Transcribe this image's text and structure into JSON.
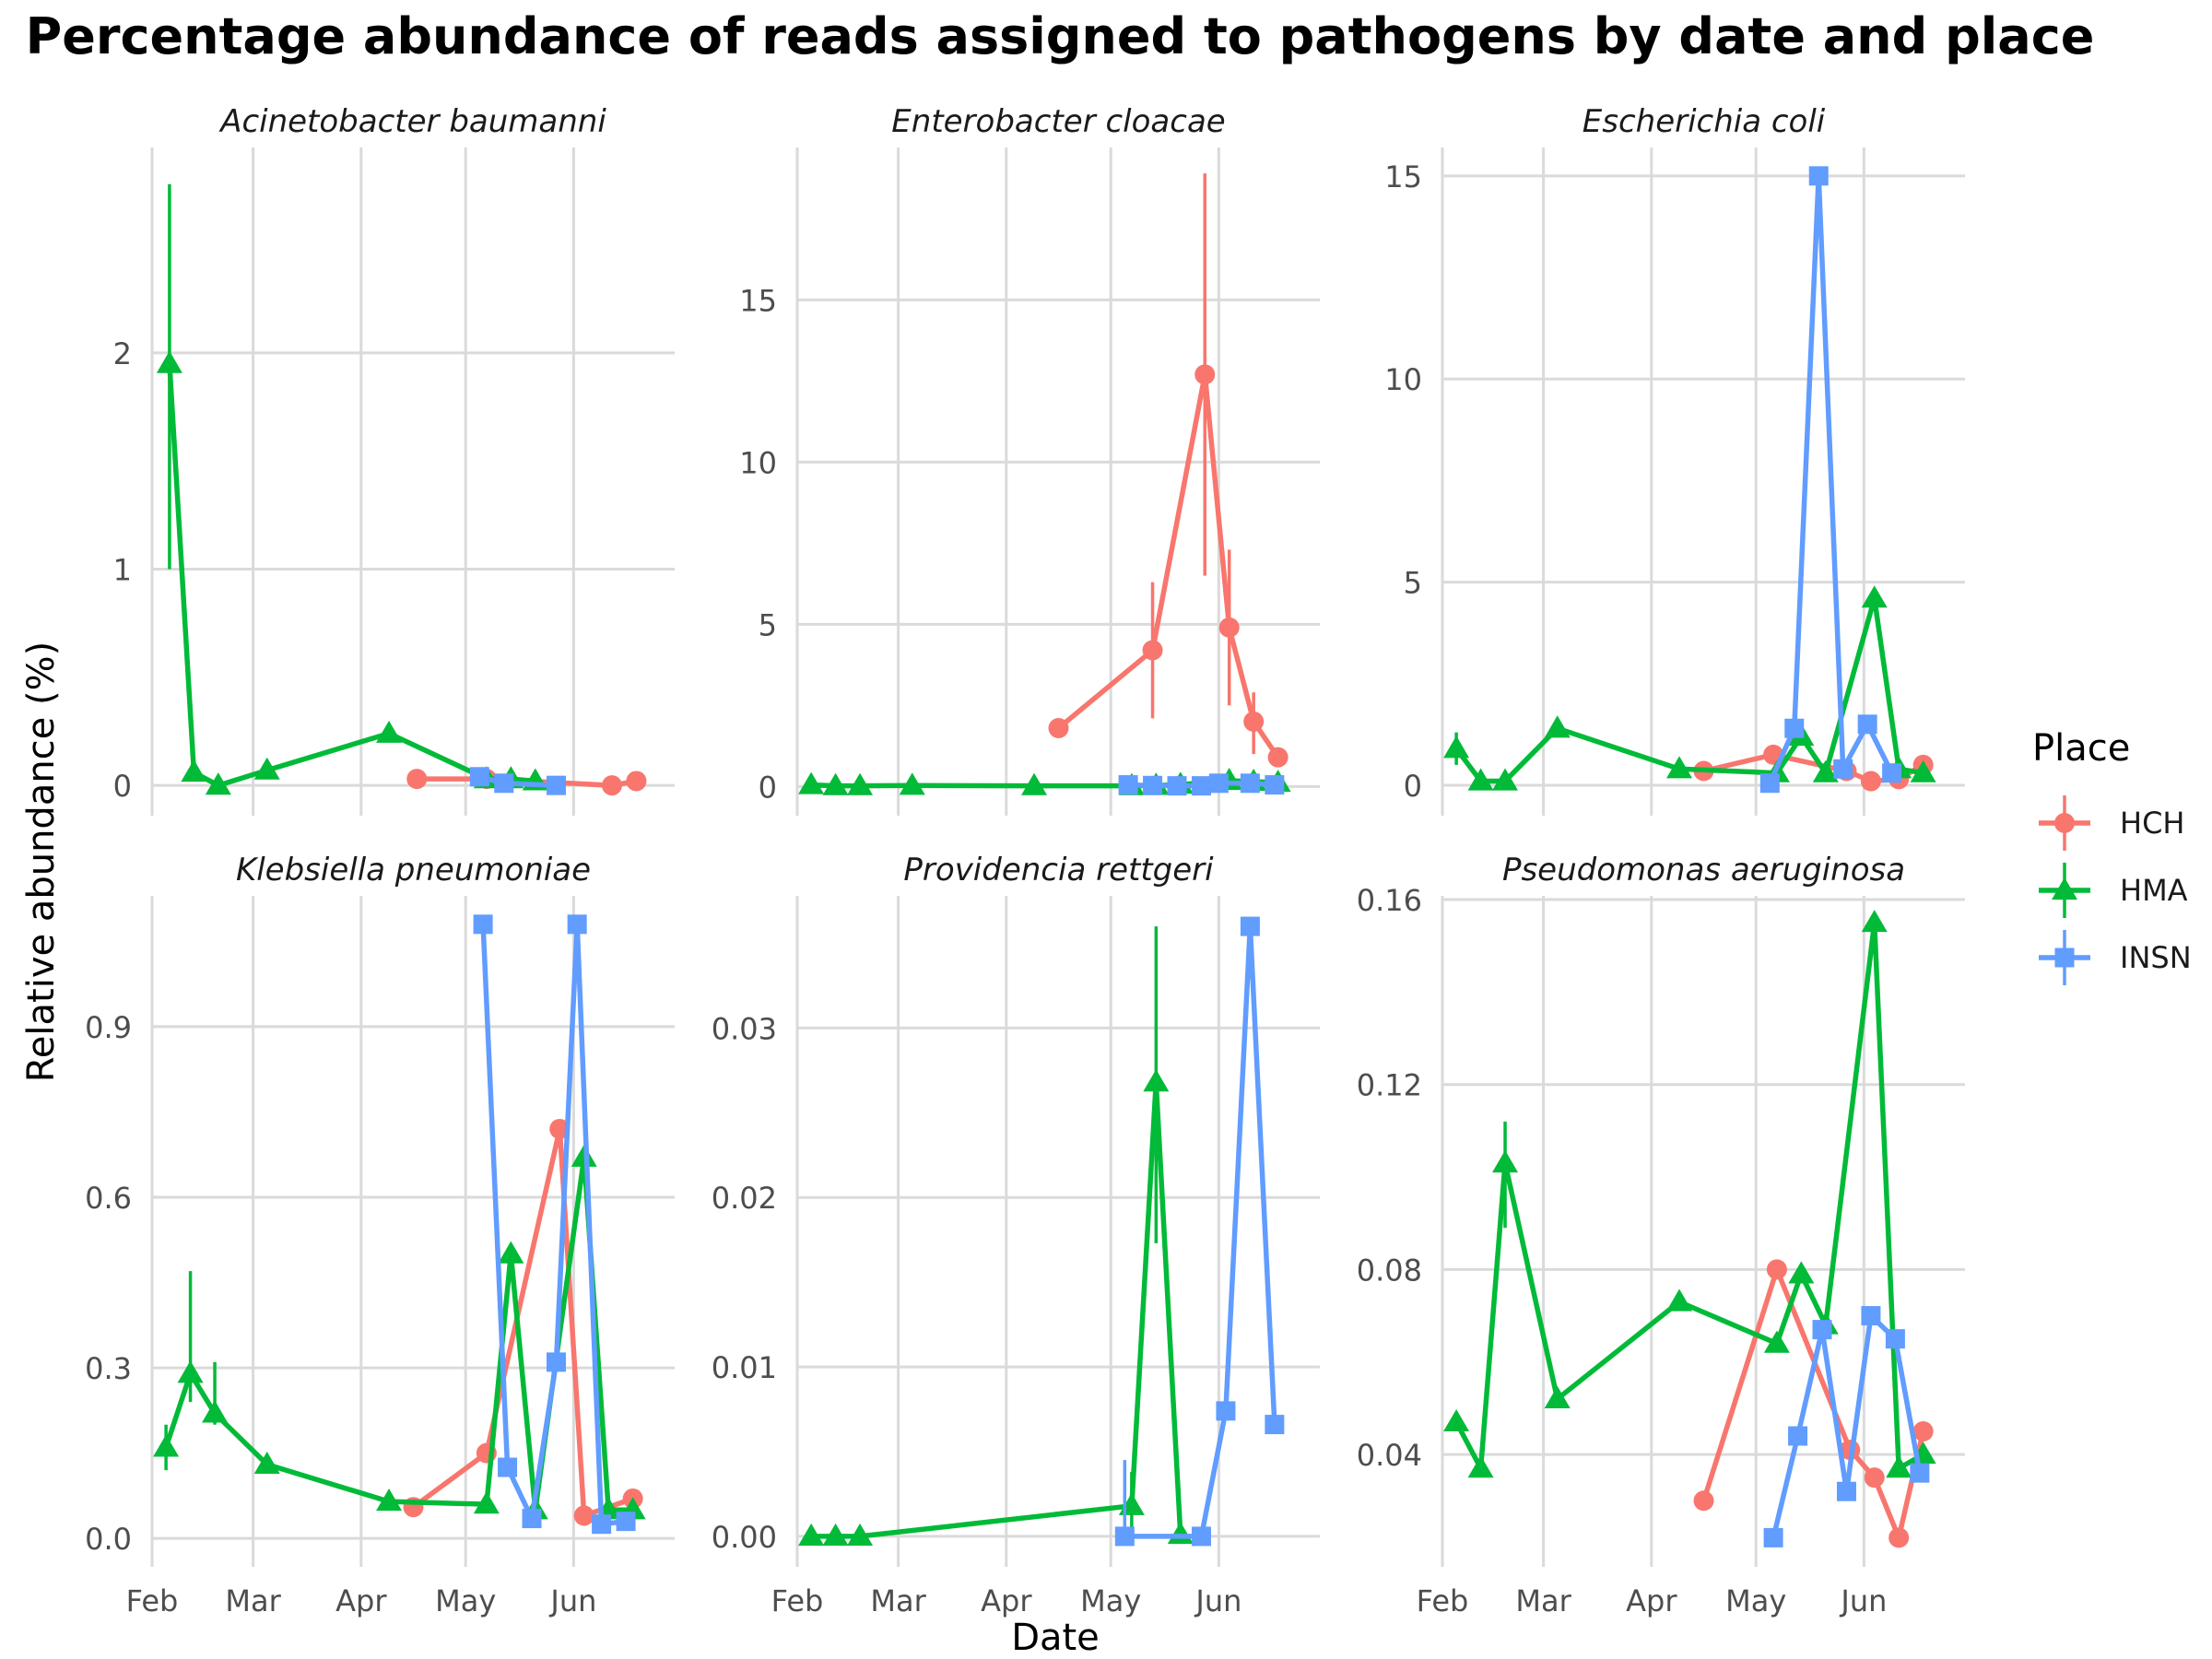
{
  "figure": {
    "title": "Percentage abundance of reads assigned to pathogens by date and place",
    "xlabel": "Date",
    "ylabel": "Relative abundance (%)",
    "legend": {
      "title": "Place",
      "position": "right",
      "entries": [
        {
          "name": "HCH",
          "color": "#F8766D",
          "shape": "circle"
        },
        {
          "name": "HMA",
          "color": "#00BA38",
          "shape": "triangle"
        },
        {
          "name": "INSN",
          "color": "#619CFF",
          "shape": "square"
        }
      ]
    },
    "colors": {
      "HCH": "#F8766D",
      "HMA": "#00BA38",
      "INSN": "#619CFF",
      "grid": "#dadada",
      "text": "#4d4d4d"
    }
  },
  "chart_data": [
    {
      "type": "line",
      "title": "Acinetobacter baumanni",
      "xlim": [
        "2024-02-01",
        "2024-06-30"
      ],
      "x_ticks": [
        {
          "date": "2024-02-01",
          "label": "Feb"
        },
        {
          "date": "2024-03-01",
          "label": "Mar"
        },
        {
          "date": "2024-04-01",
          "label": "Apr"
        },
        {
          "date": "2024-05-01",
          "label": "May"
        },
        {
          "date": "2024-06-01",
          "label": "Jun"
        }
      ],
      "ylim": [
        -0.14,
        2.95
      ],
      "y_ticks": [
        {
          "value": 0,
          "label": "0"
        },
        {
          "value": 1,
          "label": "1"
        },
        {
          "value": 2,
          "label": "2"
        }
      ],
      "grid": true,
      "series": [
        {
          "name": "HCH",
          "points": [
            {
              "x": "2024-04-17",
              "y": 0.03
            },
            {
              "x": "2024-05-07",
              "y": 0.03
            },
            {
              "x": "2024-06-12",
              "y": 0.0
            },
            {
              "x": "2024-06-19",
              "y": 0.02
            }
          ]
        },
        {
          "name": "HMA",
          "points": [
            {
              "x": "2024-02-06",
              "y": 1.95,
              "ymin": 1.0,
              "ymax": 2.78
            },
            {
              "x": "2024-02-13",
              "y": 0.06
            },
            {
              "x": "2024-02-20",
              "y": 0.0
            },
            {
              "x": "2024-03-05",
              "y": 0.07
            },
            {
              "x": "2024-04-09",
              "y": 0.24
            },
            {
              "x": "2024-05-07",
              "y": 0.03
            },
            {
              "x": "2024-05-14",
              "y": 0.03
            },
            {
              "x": "2024-05-21",
              "y": 0.02
            }
          ]
        },
        {
          "name": "INSN",
          "points": [
            {
              "x": "2024-05-05",
              "y": 0.04
            },
            {
              "x": "2024-05-12",
              "y": 0.01
            },
            {
              "x": "2024-05-27",
              "y": 0.0
            }
          ]
        }
      ]
    },
    {
      "type": "line",
      "title": "Enterobacter cloacae",
      "xlim": [
        "2024-02-01",
        "2024-06-30"
      ],
      "x_ticks": [
        {
          "date": "2024-02-01",
          "label": "Feb"
        },
        {
          "date": "2024-03-01",
          "label": "Mar"
        },
        {
          "date": "2024-04-01",
          "label": "Apr"
        },
        {
          "date": "2024-05-01",
          "label": "May"
        },
        {
          "date": "2024-06-01",
          "label": "Jun"
        }
      ],
      "ylim": [
        -0.9,
        19.7
      ],
      "y_ticks": [
        {
          "value": 0,
          "label": "0"
        },
        {
          "value": 5,
          "label": "5"
        },
        {
          "value": 10,
          "label": "10"
        },
        {
          "value": 15,
          "label": "15"
        }
      ],
      "grid": true,
      "series": [
        {
          "name": "HCH",
          "points": [
            {
              "x": "2024-04-16",
              "y": 1.8
            },
            {
              "x": "2024-05-13",
              "y": 4.2,
              "ymin": 2.1,
              "ymax": 6.3
            },
            {
              "x": "2024-05-28",
              "y": 12.7,
              "ymin": 6.5,
              "ymax": 18.9
            },
            {
              "x": "2024-06-04",
              "y": 4.9,
              "ymin": 2.5,
              "ymax": 7.3
            },
            {
              "x": "2024-06-11",
              "y": 2.0,
              "ymin": 1.0,
              "ymax": 2.9
            },
            {
              "x": "2024-06-18",
              "y": 0.9
            }
          ]
        },
        {
          "name": "HMA",
          "points": [
            {
              "x": "2024-02-05",
              "y": 0.05
            },
            {
              "x": "2024-02-12",
              "y": 0.02
            },
            {
              "x": "2024-02-19",
              "y": 0.02
            },
            {
              "x": "2024-03-05",
              "y": 0.03
            },
            {
              "x": "2024-04-09",
              "y": 0.02
            },
            {
              "x": "2024-05-07",
              "y": 0.02
            },
            {
              "x": "2024-05-14",
              "y": 0.03
            },
            {
              "x": "2024-05-21",
              "y": 0.06
            },
            {
              "x": "2024-06-04",
              "y": 0.18
            },
            {
              "x": "2024-06-11",
              "y": 0.15
            },
            {
              "x": "2024-06-18",
              "y": 0.12
            }
          ]
        },
        {
          "name": "INSN",
          "points": [
            {
              "x": "2024-05-06",
              "y": 0.05
            },
            {
              "x": "2024-05-13",
              "y": 0.03
            },
            {
              "x": "2024-05-20",
              "y": 0.02
            },
            {
              "x": "2024-05-27",
              "y": 0.02
            },
            {
              "x": "2024-06-01",
              "y": 0.1
            },
            {
              "x": "2024-06-10",
              "y": 0.1
            },
            {
              "x": "2024-06-17",
              "y": 0.05
            }
          ]
        }
      ]
    },
    {
      "type": "line",
      "title": "Escherichia coli",
      "xlim": [
        "2024-02-01",
        "2024-06-30"
      ],
      "x_ticks": [
        {
          "date": "2024-02-01",
          "label": "Feb"
        },
        {
          "date": "2024-03-01",
          "label": "Mar"
        },
        {
          "date": "2024-04-01",
          "label": "Apr"
        },
        {
          "date": "2024-05-01",
          "label": "May"
        },
        {
          "date": "2024-06-01",
          "label": "Jun"
        }
      ],
      "ylim": [
        -0.75,
        15.7
      ],
      "y_ticks": [
        {
          "value": 0,
          "label": "0"
        },
        {
          "value": 5,
          "label": "5"
        },
        {
          "value": 10,
          "label": "10"
        },
        {
          "value": 15,
          "label": "15"
        }
      ],
      "grid": true,
      "series": [
        {
          "name": "HCH",
          "points": [
            {
              "x": "2024-04-16",
              "y": 0.35
            },
            {
              "x": "2024-05-06",
              "y": 0.75
            },
            {
              "x": "2024-05-27",
              "y": 0.35
            },
            {
              "x": "2024-06-03",
              "y": 0.1
            },
            {
              "x": "2024-06-11",
              "y": 0.15
            },
            {
              "x": "2024-06-18",
              "y": 0.5
            }
          ]
        },
        {
          "name": "HMA",
          "points": [
            {
              "x": "2024-02-05",
              "y": 0.9,
              "ymin": 0.5,
              "ymax": 1.3
            },
            {
              "x": "2024-02-12",
              "y": 0.1
            },
            {
              "x": "2024-02-19",
              "y": 0.1
            },
            {
              "x": "2024-03-05",
              "y": 1.4
            },
            {
              "x": "2024-04-09",
              "y": 0.4
            },
            {
              "x": "2024-05-07",
              "y": 0.3
            },
            {
              "x": "2024-05-14",
              "y": 1.2
            },
            {
              "x": "2024-05-21",
              "y": 0.3
            },
            {
              "x": "2024-06-04",
              "y": 4.6
            },
            {
              "x": "2024-06-11",
              "y": 0.4
            },
            {
              "x": "2024-06-18",
              "y": 0.3
            }
          ]
        },
        {
          "name": "INSN",
          "points": [
            {
              "x": "2024-05-05",
              "y": 0.05
            },
            {
              "x": "2024-05-12",
              "y": 1.4
            },
            {
              "x": "2024-05-19",
              "y": 15.0
            },
            {
              "x": "2024-05-26",
              "y": 0.4
            },
            {
              "x": "2024-06-02",
              "y": 1.5
            },
            {
              "x": "2024-06-09",
              "y": 0.3
            }
          ]
        }
      ]
    },
    {
      "type": "line",
      "title": "Klebsiella pneumoniae",
      "xlim": [
        "2024-02-01",
        "2024-06-30"
      ],
      "x_ticks": [
        {
          "date": "2024-02-01",
          "label": "Feb"
        },
        {
          "date": "2024-03-01",
          "label": "Mar"
        },
        {
          "date": "2024-04-01",
          "label": "Apr"
        },
        {
          "date": "2024-05-01",
          "label": "May"
        },
        {
          "date": "2024-06-01",
          "label": "Jun"
        }
      ],
      "ylim": [
        -0.05,
        1.13
      ],
      "y_ticks": [
        {
          "value": 0,
          "label": "0.0"
        },
        {
          "value": 0.3,
          "label": "0.3"
        },
        {
          "value": 0.6,
          "label": "0.6"
        },
        {
          "value": 0.9,
          "label": "0.9"
        }
      ],
      "grid": true,
      "series": [
        {
          "name": "HCH",
          "points": [
            {
              "x": "2024-04-16",
              "y": 0.055
            },
            {
              "x": "2024-05-07",
              "y": 0.15
            },
            {
              "x": "2024-05-28",
              "y": 0.72
            },
            {
              "x": "2024-06-04",
              "y": 0.04
            },
            {
              "x": "2024-06-18",
              "y": 0.07
            }
          ]
        },
        {
          "name": "HMA",
          "points": [
            {
              "x": "2024-02-05",
              "y": 0.16,
              "ymin": 0.12,
              "ymax": 0.2
            },
            {
              "x": "2024-02-12",
              "y": 0.29,
              "ymin": 0.24,
              "ymax": 0.47
            },
            {
              "x": "2024-02-19",
              "y": 0.22,
              "ymin": 0.2,
              "ymax": 0.31
            },
            {
              "x": "2024-03-05",
              "y": 0.13
            },
            {
              "x": "2024-04-09",
              "y": 0.065
            },
            {
              "x": "2024-05-07",
              "y": 0.06
            },
            {
              "x": "2024-05-14",
              "y": 0.5
            },
            {
              "x": "2024-05-21",
              "y": 0.05
            },
            {
              "x": "2024-06-04",
              "y": 0.67
            },
            {
              "x": "2024-06-11",
              "y": 0.05
            },
            {
              "x": "2024-06-18",
              "y": 0.05
            }
          ]
        },
        {
          "name": "INSN",
          "points": [
            {
              "x": "2024-05-06",
              "y": 1.08
            },
            {
              "x": "2024-05-13",
              "y": 0.125
            },
            {
              "x": "2024-05-20",
              "y": 0.035
            },
            {
              "x": "2024-05-27",
              "y": 0.31
            },
            {
              "x": "2024-06-02",
              "y": 1.08
            },
            {
              "x": "2024-06-09",
              "y": 0.025
            },
            {
              "x": "2024-06-16",
              "y": 0.03
            }
          ]
        }
      ]
    },
    {
      "type": "line",
      "title": "Providencia rettgeri",
      "xlim": [
        "2024-02-01",
        "2024-06-30"
      ],
      "x_ticks": [
        {
          "date": "2024-02-01",
          "label": "Feb"
        },
        {
          "date": "2024-03-01",
          "label": "Mar"
        },
        {
          "date": "2024-04-01",
          "label": "Apr"
        },
        {
          "date": "2024-05-01",
          "label": "May"
        },
        {
          "date": "2024-06-01",
          "label": "Jun"
        }
      ],
      "ylim": [
        -0.0018,
        0.0378
      ],
      "y_ticks": [
        {
          "value": 0,
          "label": "0.00"
        },
        {
          "value": 0.01,
          "label": "0.01"
        },
        {
          "value": 0.02,
          "label": "0.02"
        },
        {
          "value": 0.03,
          "label": "0.03"
        }
      ],
      "grid": true,
      "series": [
        {
          "name": "HMA",
          "points": [
            {
              "x": "2024-02-05",
              "y": 0.0
            },
            {
              "x": "2024-02-12",
              "y": 0.0
            },
            {
              "x": "2024-02-19",
              "y": 0.0
            },
            {
              "x": "2024-05-07",
              "y": 0.0018,
              "ymin": 0.0005,
              "ymax": 0.0038
            },
            {
              "x": "2024-05-14",
              "y": 0.0268,
              "ymin": 0.0173,
              "ymax": 0.036
            },
            {
              "x": "2024-05-21",
              "y": 0.0001
            }
          ]
        },
        {
          "name": "INSN",
          "points": [
            {
              "x": "2024-05-05",
              "y": 0.0,
              "ymin": 0.0,
              "ymax": 0.0045
            },
            {
              "x": "2024-05-27",
              "y": 0.0
            },
            {
              "x": "2024-06-03",
              "y": 0.0074
            },
            {
              "x": "2024-06-10",
              "y": 0.036
            },
            {
              "x": "2024-06-17",
              "y": 0.0066
            }
          ]
        }
      ]
    },
    {
      "type": "line",
      "title": "Pseudomonas aeruginosa",
      "xlim": [
        "2024-02-01",
        "2024-06-30"
      ],
      "x_ticks": [
        {
          "date": "2024-02-01",
          "label": "Feb"
        },
        {
          "date": "2024-03-01",
          "label": "Mar"
        },
        {
          "date": "2024-04-01",
          "label": "Apr"
        },
        {
          "date": "2024-05-01",
          "label": "May"
        },
        {
          "date": "2024-06-01",
          "label": "Jun"
        }
      ],
      "ylim": [
        0.0157,
        0.1608
      ],
      "y_ticks": [
        {
          "value": 0.04,
          "label": "0.04"
        },
        {
          "value": 0.08,
          "label": "0.08"
        },
        {
          "value": 0.12,
          "label": "0.12"
        },
        {
          "value": 0.16,
          "label": "0.16"
        }
      ],
      "grid": true,
      "series": [
        {
          "name": "HCH",
          "points": [
            {
              "x": "2024-04-16",
              "y": 0.03
            },
            {
              "x": "2024-05-07",
              "y": 0.08
            },
            {
              "x": "2024-05-28",
              "y": 0.041
            },
            {
              "x": "2024-06-04",
              "y": 0.035
            },
            {
              "x": "2024-06-11",
              "y": 0.022
            },
            {
              "x": "2024-06-18",
              "y": 0.045
            }
          ]
        },
        {
          "name": "HMA",
          "points": [
            {
              "x": "2024-02-05",
              "y": 0.047
            },
            {
              "x": "2024-02-12",
              "y": 0.037
            },
            {
              "x": "2024-02-19",
              "y": 0.103,
              "ymin": 0.089,
              "ymax": 0.112
            },
            {
              "x": "2024-03-05",
              "y": 0.052
            },
            {
              "x": "2024-04-09",
              "y": 0.073
            },
            {
              "x": "2024-05-07",
              "y": 0.064
            },
            {
              "x": "2024-05-14",
              "y": 0.079
            },
            {
              "x": "2024-05-21",
              "y": 0.068
            },
            {
              "x": "2024-06-04",
              "y": 0.155
            },
            {
              "x": "2024-06-11",
              "y": 0.037
            },
            {
              "x": "2024-06-18",
              "y": 0.04
            }
          ]
        },
        {
          "name": "INSN",
          "points": [
            {
              "x": "2024-05-06",
              "y": 0.022
            },
            {
              "x": "2024-05-13",
              "y": 0.044
            },
            {
              "x": "2024-05-20",
              "y": 0.067
            },
            {
              "x": "2024-05-27",
              "y": 0.032
            },
            {
              "x": "2024-06-03",
              "y": 0.07
            },
            {
              "x": "2024-06-10",
              "y": 0.065
            },
            {
              "x": "2024-06-17",
              "y": 0.036
            }
          ]
        }
      ]
    }
  ]
}
